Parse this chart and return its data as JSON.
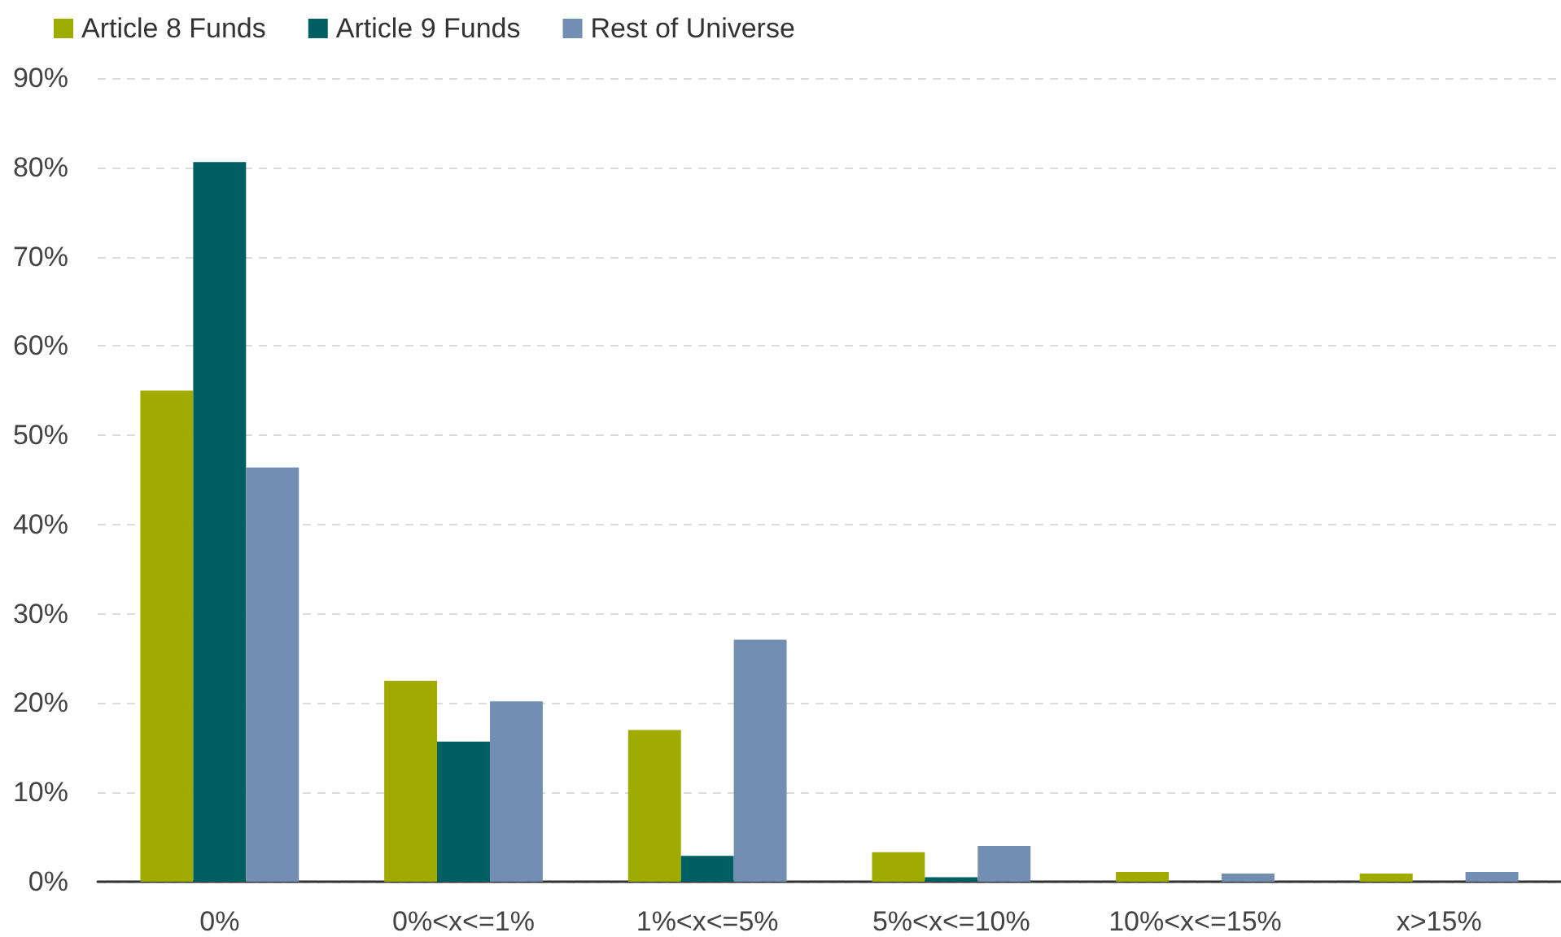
{
  "chart_data": {
    "type": "bar",
    "categories": [
      "0%",
      "0%<x<=1%",
      "1%<x<=5%",
      "5%<x<=10%",
      "10%<x<=15%",
      "x>15%"
    ],
    "series": [
      {
        "name": "Article 8 Funds",
        "color": "#a0ab00",
        "values": [
          55.0,
          22.5,
          17.0,
          3.3,
          1.1,
          0.9
        ]
      },
      {
        "name": "Article 9 Funds",
        "color": "#005f63",
        "values": [
          80.6,
          15.7,
          2.9,
          0.5,
          null,
          null
        ]
      },
      {
        "name": "Rest of Universe",
        "color": "#728fb3",
        "values": [
          46.4,
          20.2,
          27.1,
          4.0,
          0.9,
          1.1
        ]
      }
    ],
    "ylim": [
      0,
      90
    ],
    "yticks": [
      {
        "value": 0,
        "label": "0%"
      },
      {
        "value": 10,
        "label": "10%"
      },
      {
        "value": 20,
        "label": "20%"
      },
      {
        "value": 30,
        "label": "30%"
      },
      {
        "value": 40,
        "label": "40%"
      },
      {
        "value": 50,
        "label": "50%"
      },
      {
        "value": 60,
        "label": "60%"
      },
      {
        "value": 70,
        "label": "70%"
      },
      {
        "value": 80,
        "label": "80%"
      },
      {
        "value": 90,
        "label": "90%"
      }
    ],
    "grid": "y",
    "legend": "top left"
  }
}
